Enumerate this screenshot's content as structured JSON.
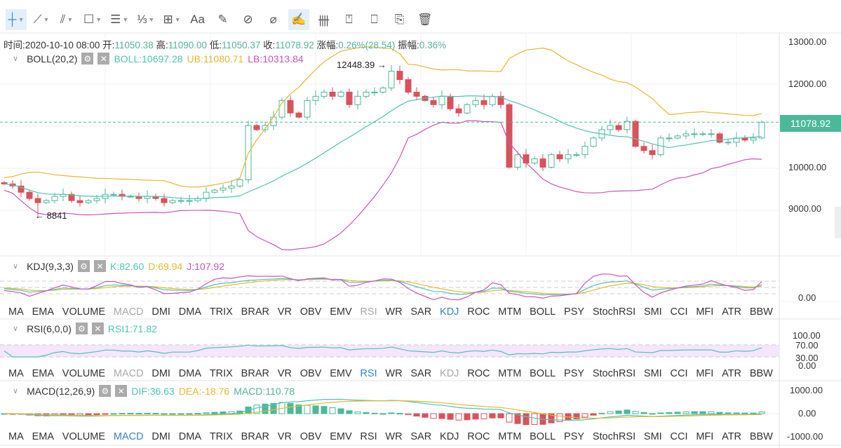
{
  "toolbar": {
    "items": [
      {
        "name": "crosshair-tool",
        "glyph": "┼",
        "dd": true,
        "active": true
      },
      {
        "name": "trend-line-tool",
        "glyph": "⟋",
        "dd": true
      },
      {
        "name": "parallel-lines-tool",
        "glyph": "⫽",
        "dd": true
      },
      {
        "name": "rectangle-tool",
        "glyph": "☐",
        "dd": true
      },
      {
        "name": "horizontal-lines-tool",
        "glyph": "☰",
        "dd": true
      },
      {
        "name": "fibonacci-tool",
        "glyph": "⅓",
        "dd": true
      },
      {
        "name": "measure-tool",
        "glyph": "⊞",
        "dd": true
      },
      {
        "name": "text-tool",
        "glyph": "Aa"
      },
      {
        "name": "magnet-tool",
        "glyph": "✎"
      },
      {
        "name": "eraser-tool",
        "glyph": "⊘"
      },
      {
        "name": "ruler-tool",
        "glyph": "⌀"
      },
      {
        "name": "draw-mode-tool",
        "glyph": "✍",
        "active": true
      },
      {
        "name": "candle-tool",
        "glyph": "卌"
      },
      {
        "name": "lock-tool",
        "glyph": "⍞"
      },
      {
        "name": "bookmark-tool",
        "glyph": "⎕"
      },
      {
        "name": "edit-tool",
        "glyph": "⎘"
      },
      {
        "name": "delete-tool",
        "glyph": "🗑"
      }
    ]
  },
  "info": {
    "time_label": "时间:",
    "time": "2020-10-10 08:00",
    "open_label": "开:",
    "open": "11050.38",
    "high_label": "高:",
    "high": "11090.00",
    "low_label": "低:",
    "low": "11050.37",
    "close_label": "收:",
    "close": "11078.92",
    "change_label": "涨幅:",
    "change": "0.26%(28.54)",
    "amp_label": "振幅:",
    "amp": "0.36%"
  },
  "boll": {
    "title": "BOLL(20,2)",
    "mid": "BOLL:10697.28",
    "ub": "UB:11080.71",
    "lb": "LB:10313.84"
  },
  "kdj": {
    "title": "KDJ(9,3,3)",
    "k": "K:82.60",
    "d": "D:69.94",
    "j": "J:107.92"
  },
  "rsi": {
    "title": "RSI(6,0,0)",
    "rsi1": "RSI1:71.82"
  },
  "macd": {
    "title": "MACD(12,26,9)",
    "dif": "DIF:36.63",
    "dea": "DEA:-18.76",
    "macd": "MACD:110.78"
  },
  "tabs": [
    "MA",
    "EMA",
    "VOLUME",
    "MACD",
    "DMI",
    "DMA",
    "TRIX",
    "BRAR",
    "VR",
    "OBV",
    "EMV",
    "RSI",
    "WR",
    "SAR",
    "KDJ",
    "ROC",
    "MTM",
    "BOLL",
    "PSY",
    "StochRSI",
    "SMI",
    "CCI",
    "MFI",
    "ATR",
    "BBW"
  ],
  "tab_rows": [
    {
      "dim": [
        "MACD",
        "RSI"
      ],
      "sel": "KDJ"
    },
    {
      "dim": [
        "MACD",
        "KDJ"
      ],
      "sel": "RSI"
    },
    {
      "dim": [],
      "sel": "MACD"
    }
  ],
  "annotations": {
    "high": "12448.39 →",
    "low": "← 8841"
  },
  "axes": {
    "price": [
      "13000.00",
      "12000.00",
      "10000.00",
      "9000.00"
    ],
    "last_price": "11078.92",
    "kdj": [
      "0.00"
    ],
    "rsi": [
      "100.00",
      "70.00",
      "30.00",
      "0.00"
    ],
    "macd": [
      "1000.00",
      "0.00",
      "-1000.00"
    ]
  },
  "colors": {
    "up": "#4cb89a",
    "down": "#d9525b",
    "boll": "#4ec4b4",
    "ub": "#e8b830",
    "lb": "#cc55b8"
  },
  "chart_data": {
    "type": "candlestick",
    "interval": "8h",
    "closes": [
      9600,
      9550,
      9400,
      9250,
      9150,
      9200,
      9300,
      9350,
      9200,
      9150,
      9200,
      9250,
      9350,
      9350,
      9300,
      9300,
      9250,
      9300,
      9250,
      9150,
      9200,
      9200,
      9200,
      9250,
      9400,
      9450,
      9500,
      9550,
      9700,
      11000,
      10900,
      11000,
      11200,
      11600,
      11300,
      11200,
      11600,
      11700,
      11800,
      11700,
      11800,
      11500,
      11700,
      11800,
      11800,
      11900,
      12300,
      12100,
      11800,
      11700,
      11600,
      11500,
      11700,
      11400,
      11300,
      11500,
      11600,
      11500,
      11700,
      11500,
      10000,
      10300,
      10100,
      10200,
      10000,
      10300,
      10200,
      10300,
      10300,
      10500,
      10700,
      10900,
      11000,
      10900,
      11100,
      10500,
      10400,
      10300,
      10700,
      10700,
      10750,
      10800,
      10800,
      10800,
      10800,
      10600,
      10600,
      10700,
      10650,
      10700,
      11078.92
    ],
    "price_range": [
      8200,
      13300
    ],
    "last_close": 11078.92
  }
}
